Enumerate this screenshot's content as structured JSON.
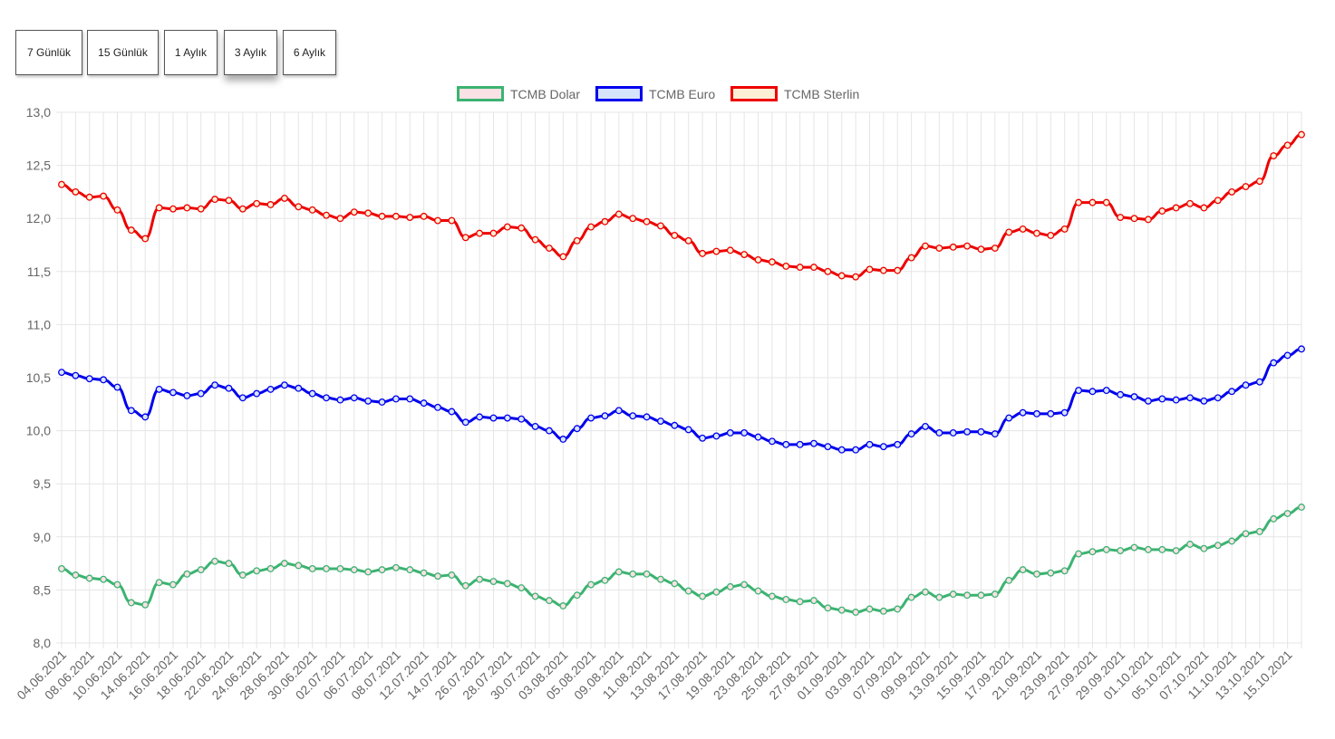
{
  "range_buttons": [
    "7 Günlük",
    "15 Günlük",
    "1 Aylık",
    "3 Aylık",
    "6 Aylık"
  ],
  "active_range": "3 Aylık",
  "chart_data": {
    "type": "line",
    "x_tick_labels": [
      "04.06.2021",
      "08.06.2021",
      "10.06.2021",
      "14.06.2021",
      "16.06.2021",
      "18.06.2021",
      "22.06.2021",
      "24.06.2021",
      "28.06.2021",
      "30.06.2021",
      "02.07.2021",
      "06.07.2021",
      "08.07.2021",
      "12.07.2021",
      "14.07.2021",
      "26.07.2021",
      "28.07.2021",
      "30.07.2021",
      "03.08.2021",
      "05.08.2021",
      "09.08.2021",
      "11.08.2021",
      "13.08.2021",
      "17.08.2021",
      "19.08.2021",
      "23.08.2021",
      "25.08.2021",
      "27.08.2021",
      "01.09.2021",
      "03.09.2021",
      "07.09.2021",
      "09.09.2021",
      "13.09.2021",
      "15.09.2021",
      "17.09.2021",
      "21.09.2021",
      "23.09.2021",
      "27.09.2021",
      "29.09.2021",
      "01.10.2021",
      "05.10.2021",
      "07.10.2021",
      "11.10.2021",
      "13.10.2021",
      "15.10.2021"
    ],
    "y_ticks": [
      "8,0",
      "8,5",
      "9,0",
      "9,5",
      "10,0",
      "10,5",
      "11,0",
      "11,5",
      "12,0",
      "12,5",
      "13,0"
    ],
    "ylim": [
      8.0,
      13.0
    ],
    "grid": true,
    "legend_position": "top-center",
    "series": [
      {
        "name": "TCMB Dolar",
        "color": "#3cb371",
        "fill": "#f9e1e5",
        "values": [
          8.7,
          8.64,
          8.61,
          8.6,
          8.55,
          8.38,
          8.36,
          8.57,
          8.55,
          8.65,
          8.69,
          8.77,
          8.75,
          8.64,
          8.68,
          8.7,
          8.75,
          8.73,
          8.7,
          8.7,
          8.7,
          8.69,
          8.67,
          8.69,
          8.71,
          8.69,
          8.66,
          8.63,
          8.64,
          8.54,
          8.6,
          8.58,
          8.56,
          8.52,
          8.44,
          8.4,
          8.35,
          8.45,
          8.55,
          8.59,
          8.67,
          8.65,
          8.65,
          8.6,
          8.56,
          8.49,
          8.44,
          8.48,
          8.53,
          8.55,
          8.49,
          8.44,
          8.41,
          8.39,
          8.4,
          8.33,
          8.31,
          8.29,
          8.32,
          8.3,
          8.32,
          8.43,
          8.48,
          8.43,
          8.46,
          8.45,
          8.45,
          8.46,
          8.59,
          8.69,
          8.65,
          8.66,
          8.68,
          8.84,
          8.86,
          8.88,
          8.87,
          8.9,
          8.88,
          8.88,
          8.87,
          8.93,
          8.89,
          8.92,
          8.96,
          9.03,
          9.05,
          9.17,
          9.22,
          9.28
        ]
      },
      {
        "name": "TCMB Euro",
        "color": "#0000ee",
        "fill": "#d6e4fb",
        "values": [
          10.55,
          10.52,
          10.49,
          10.48,
          10.41,
          10.19,
          10.13,
          10.39,
          10.36,
          10.33,
          10.35,
          10.43,
          10.4,
          10.31,
          10.35,
          10.39,
          10.43,
          10.4,
          10.35,
          10.31,
          10.29,
          10.31,
          10.28,
          10.27,
          10.3,
          10.3,
          10.26,
          10.22,
          10.18,
          10.08,
          10.13,
          10.12,
          10.12,
          10.11,
          10.04,
          10.0,
          9.92,
          10.02,
          10.12,
          10.14,
          10.19,
          10.14,
          10.13,
          10.09,
          10.05,
          10.01,
          9.93,
          9.95,
          9.98,
          9.98,
          9.94,
          9.9,
          9.87,
          9.87,
          9.88,
          9.85,
          9.82,
          9.82,
          9.87,
          9.85,
          9.87,
          9.97,
          10.04,
          9.98,
          9.98,
          9.99,
          9.99,
          9.97,
          10.12,
          10.17,
          10.16,
          10.16,
          10.17,
          10.38,
          10.37,
          10.38,
          10.34,
          10.32,
          10.28,
          10.3,
          10.29,
          10.31,
          10.28,
          10.31,
          10.37,
          10.43,
          10.46,
          10.64,
          10.71,
          10.77
        ]
      },
      {
        "name": "TCMB Sterlin",
        "color": "#ee0000",
        "fill": "#fcefd6",
        "values": [
          12.32,
          12.25,
          12.2,
          12.21,
          12.08,
          11.89,
          11.81,
          12.1,
          12.09,
          12.1,
          12.09,
          12.18,
          12.17,
          12.09,
          12.14,
          12.13,
          12.19,
          12.11,
          12.08,
          12.03,
          12.0,
          12.06,
          12.05,
          12.02,
          12.02,
          12.01,
          12.02,
          11.98,
          11.98,
          11.82,
          11.86,
          11.86,
          11.92,
          11.91,
          11.8,
          11.72,
          11.64,
          11.79,
          11.92,
          11.97,
          12.04,
          12.0,
          11.97,
          11.93,
          11.84,
          11.79,
          11.67,
          11.69,
          11.7,
          11.66,
          11.61,
          11.59,
          11.55,
          11.54,
          11.54,
          11.5,
          11.46,
          11.45,
          11.52,
          11.51,
          11.51,
          11.63,
          11.74,
          11.72,
          11.73,
          11.74,
          11.71,
          11.72,
          11.87,
          11.9,
          11.86,
          11.84,
          11.9,
          12.15,
          12.15,
          12.15,
          12.01,
          12.0,
          11.99,
          12.07,
          12.1,
          12.14,
          12.1,
          12.17,
          12.25,
          12.3,
          12.35,
          12.59,
          12.69,
          12.79
        ]
      }
    ]
  }
}
